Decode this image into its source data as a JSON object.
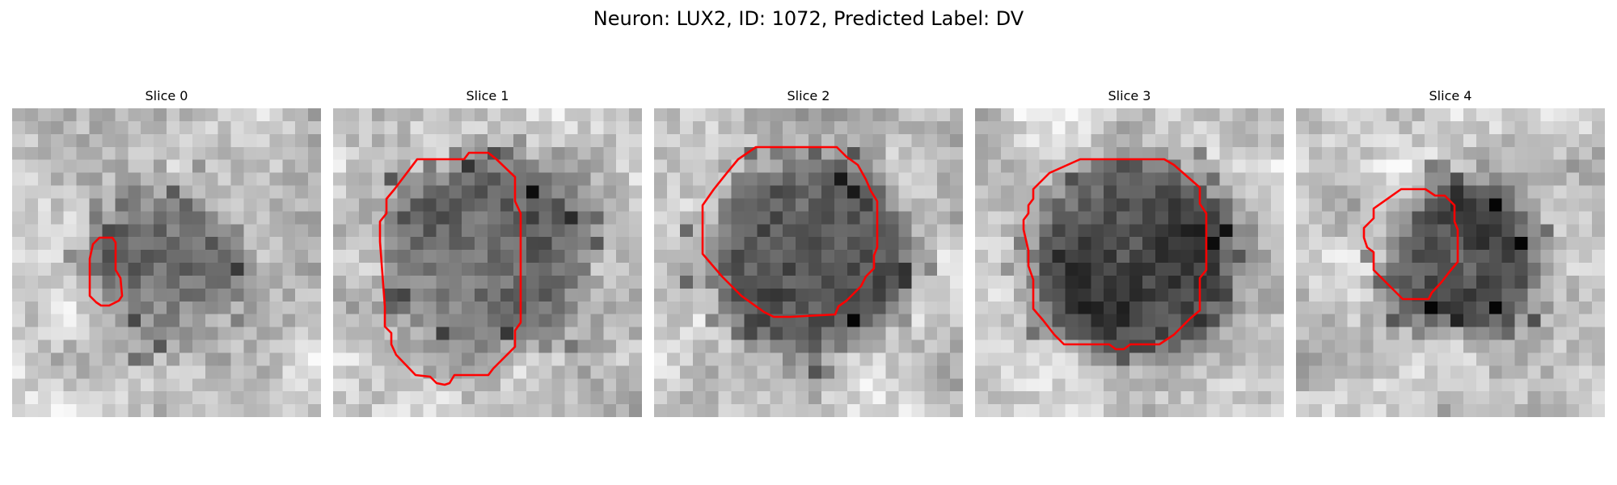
{
  "figure": {
    "title": "Neuron: LUX2, ID: 1072, Predicted Label: DV"
  },
  "outline_color": "#ff0000",
  "panels": [
    {
      "title": "Slice 0"
    },
    {
      "title": "Slice 1"
    },
    {
      "title": "Slice 2"
    },
    {
      "title": "Slice 3"
    },
    {
      "title": "Slice 4"
    }
  ]
}
